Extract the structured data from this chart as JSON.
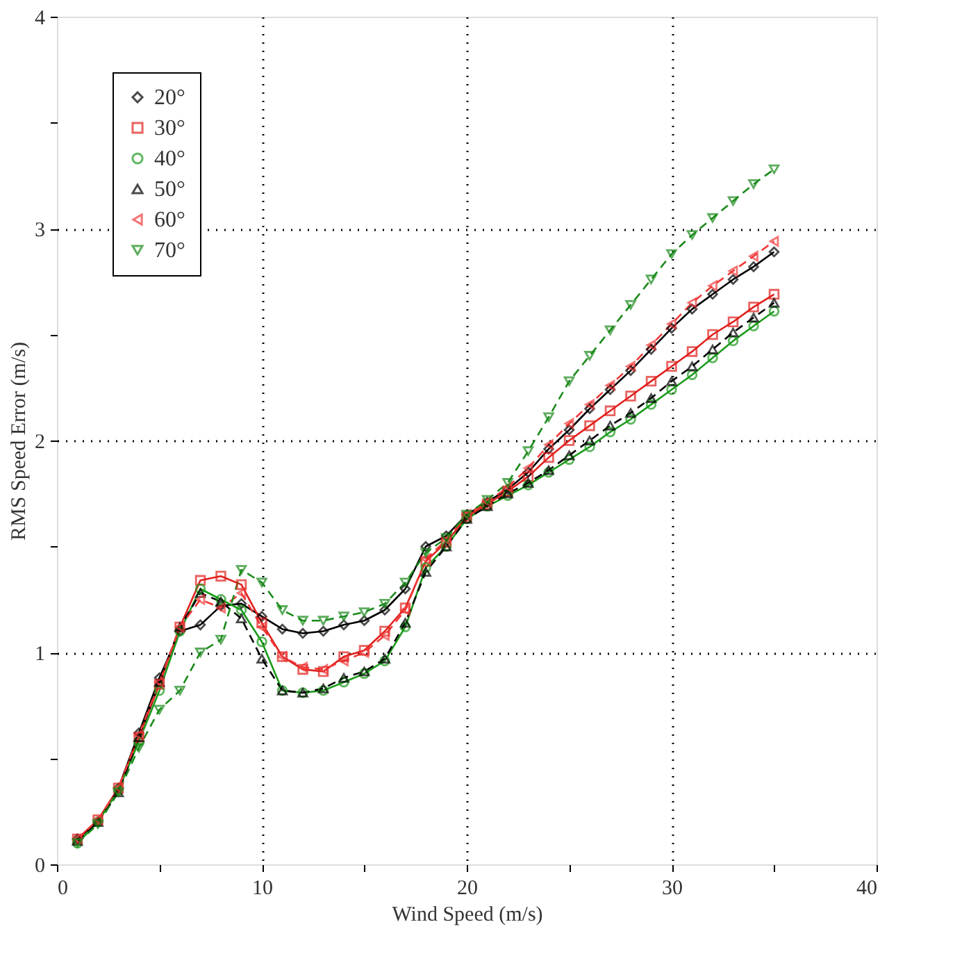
{
  "chart_data": {
    "type": "line",
    "xlabel": "Wind Speed (m/s)",
    "ylabel": "RMS Speed Error (m/s)",
    "x": [
      1,
      2,
      3,
      4,
      5,
      6,
      7,
      8,
      9,
      10,
      11,
      12,
      13,
      14,
      15,
      16,
      17,
      18,
      19,
      20,
      21,
      22,
      23,
      24,
      25,
      26,
      27,
      28,
      29,
      30,
      31,
      32,
      33,
      34,
      35
    ],
    "series": [
      {
        "name": "20°",
        "color": "#000000",
        "marker": "diamond",
        "line_style": "solid",
        "values": [
          0.12,
          0.2,
          0.36,
          0.62,
          0.88,
          1.1,
          1.13,
          1.22,
          1.23,
          1.17,
          1.11,
          1.09,
          1.1,
          1.13,
          1.15,
          1.2,
          1.3,
          1.5,
          1.55,
          1.65,
          1.71,
          1.77,
          1.85,
          1.96,
          2.05,
          2.15,
          2.24,
          2.33,
          2.43,
          2.53,
          2.62,
          2.69,
          2.76,
          2.82,
          2.89
        ]
      },
      {
        "name": "30°",
        "color": "#e0201c",
        "marker": "square",
        "line_style": "solid",
        "values": [
          0.12,
          0.21,
          0.36,
          0.6,
          0.85,
          1.12,
          1.34,
          1.36,
          1.32,
          1.14,
          0.98,
          0.92,
          0.91,
          0.98,
          1.01,
          1.1,
          1.21,
          1.43,
          1.52,
          1.64,
          1.7,
          1.76,
          1.83,
          1.92,
          2.0,
          2.07,
          2.14,
          2.21,
          2.28,
          2.35,
          2.42,
          2.5,
          2.56,
          2.63,
          2.69
        ]
      },
      {
        "name": "40°",
        "color": "#1a9a1a",
        "marker": "circle",
        "line_style": "solid",
        "values": [
          0.1,
          0.2,
          0.35,
          0.58,
          0.82,
          1.1,
          1.3,
          1.25,
          1.2,
          1.05,
          0.82,
          0.81,
          0.82,
          0.86,
          0.9,
          0.96,
          1.12,
          1.4,
          1.5,
          1.63,
          1.69,
          1.74,
          1.79,
          1.85,
          1.91,
          1.97,
          2.04,
          2.1,
          2.17,
          2.24,
          2.31,
          2.39,
          2.47,
          2.54,
          2.61
        ]
      },
      {
        "name": "50°",
        "color": "#000000",
        "marker": "triangle",
        "line_style": "dashed",
        "values": [
          0.11,
          0.2,
          0.34,
          0.6,
          0.86,
          1.12,
          1.28,
          1.24,
          1.16,
          0.97,
          0.82,
          0.81,
          0.83,
          0.88,
          0.91,
          0.97,
          1.14,
          1.38,
          1.5,
          1.63,
          1.69,
          1.75,
          1.8,
          1.86,
          1.93,
          2.0,
          2.07,
          2.13,
          2.2,
          2.28,
          2.35,
          2.43,
          2.51,
          2.58,
          2.65
        ]
      },
      {
        "name": "60°",
        "color": "#f03a3a",
        "marker": "triangle-left",
        "line_style": "dashed",
        "values": [
          0.12,
          0.21,
          0.36,
          0.61,
          0.86,
          1.12,
          1.25,
          1.21,
          1.28,
          1.12,
          0.98,
          0.93,
          0.92,
          0.96,
          1.0,
          1.08,
          1.2,
          1.44,
          1.53,
          1.65,
          1.71,
          1.78,
          1.87,
          1.98,
          2.08,
          2.17,
          2.26,
          2.35,
          2.45,
          2.55,
          2.65,
          2.73,
          2.8,
          2.87,
          2.94
        ]
      },
      {
        "name": "70°",
        "color": "#1a8a1a",
        "marker": "triangle-down",
        "line_style": "dashed",
        "values": [
          0.1,
          0.19,
          0.34,
          0.55,
          0.73,
          0.82,
          1.0,
          1.06,
          1.39,
          1.33,
          1.2,
          1.15,
          1.15,
          1.17,
          1.19,
          1.23,
          1.33,
          1.47,
          1.54,
          1.65,
          1.72,
          1.8,
          1.95,
          2.11,
          2.28,
          2.4,
          2.52,
          2.64,
          2.76,
          2.88,
          2.97,
          3.05,
          3.13,
          3.21,
          3.28
        ]
      }
    ],
    "xlim": [
      0,
      40
    ],
    "xticks": [
      0,
      {
        "value": 5,
        "label": null
      },
      10,
      {
        "value": 15,
        "label": null
      },
      20,
      {
        "value": 25,
        "label": null
      },
      30,
      {
        "value": 35,
        "label": null
      },
      40
    ],
    "ylim": [
      0,
      4
    ],
    "yticks": [
      0,
      {
        "value": 0.5,
        "label": null
      },
      1,
      {
        "value": 1.5,
        "label": null
      },
      2,
      {
        "value": 2.5,
        "label": null
      },
      3,
      {
        "value": 3.5,
        "label": null
      },
      4
    ],
    "grid": true,
    "legend": "top left"
  }
}
